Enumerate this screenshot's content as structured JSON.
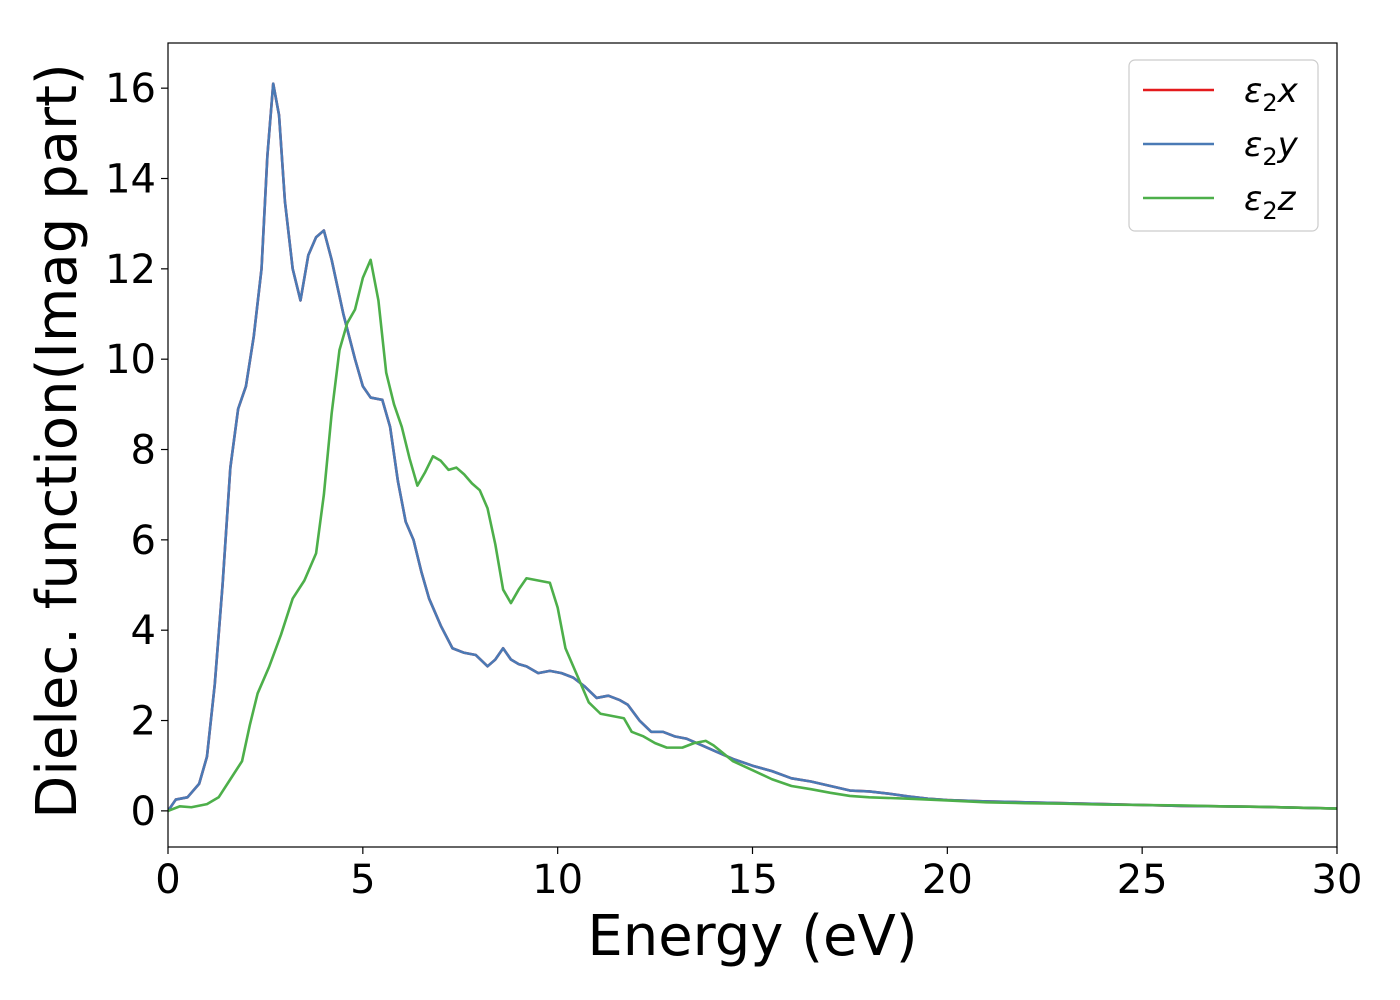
{
  "chart_data": {
    "type": "line",
    "title": "",
    "xlabel": "Energy (eV)",
    "ylabel": "Dielec. function(Imag part)",
    "xlim": [
      0,
      30
    ],
    "ylim": [
      -0.8,
      17
    ],
    "xticks": [
      0,
      5,
      10,
      15,
      20,
      25,
      30
    ],
    "yticks": [
      0,
      2,
      4,
      6,
      8,
      10,
      12,
      14,
      16
    ],
    "grid": false,
    "legend_position": "top-right",
    "series": [
      {
        "name": "ε2x",
        "legend_base": "ε",
        "legend_sub": "2",
        "legend_suffix": "x",
        "color": "#e41a1c",
        "points": [
          [
            0,
            0
          ],
          [
            0.2,
            0.25
          ],
          [
            0.5,
            0.3
          ],
          [
            0.8,
            0.6
          ],
          [
            1.0,
            1.2
          ],
          [
            1.2,
            2.8
          ],
          [
            1.4,
            5.0
          ],
          [
            1.6,
            7.6
          ],
          [
            1.8,
            8.9
          ],
          [
            2.0,
            9.4
          ],
          [
            2.2,
            10.5
          ],
          [
            2.4,
            12.0
          ],
          [
            2.55,
            14.5
          ],
          [
            2.7,
            16.1
          ],
          [
            2.85,
            15.4
          ],
          [
            3.0,
            13.5
          ],
          [
            3.2,
            12.0
          ],
          [
            3.4,
            11.3
          ],
          [
            3.6,
            12.3
          ],
          [
            3.8,
            12.7
          ],
          [
            4.0,
            12.85
          ],
          [
            4.2,
            12.2
          ],
          [
            4.5,
            11.0
          ],
          [
            4.8,
            10.0
          ],
          [
            5.0,
            9.4
          ],
          [
            5.2,
            9.15
          ],
          [
            5.5,
            9.1
          ],
          [
            5.7,
            8.5
          ],
          [
            5.9,
            7.3
          ],
          [
            6.1,
            6.4
          ],
          [
            6.3,
            6.0
          ],
          [
            6.5,
            5.3
          ],
          [
            6.7,
            4.7
          ],
          [
            7.0,
            4.1
          ],
          [
            7.3,
            3.6
          ],
          [
            7.6,
            3.5
          ],
          [
            7.9,
            3.45
          ],
          [
            8.2,
            3.2
          ],
          [
            8.4,
            3.35
          ],
          [
            8.6,
            3.6
          ],
          [
            8.8,
            3.35
          ],
          [
            9.0,
            3.25
          ],
          [
            9.2,
            3.2
          ],
          [
            9.5,
            3.05
          ],
          [
            9.8,
            3.1
          ],
          [
            10.1,
            3.05
          ],
          [
            10.4,
            2.95
          ],
          [
            10.7,
            2.75
          ],
          [
            11.0,
            2.5
          ],
          [
            11.3,
            2.55
          ],
          [
            11.6,
            2.45
          ],
          [
            11.8,
            2.35
          ],
          [
            12.1,
            2.0
          ],
          [
            12.4,
            1.75
          ],
          [
            12.7,
            1.75
          ],
          [
            13.0,
            1.65
          ],
          [
            13.3,
            1.6
          ],
          [
            13.7,
            1.45
          ],
          [
            14.1,
            1.3
          ],
          [
            14.5,
            1.15
          ],
          [
            15.0,
            1.0
          ],
          [
            15.5,
            0.88
          ],
          [
            16.0,
            0.72
          ],
          [
            16.5,
            0.65
          ],
          [
            17.0,
            0.55
          ],
          [
            17.5,
            0.45
          ],
          [
            18.0,
            0.43
          ],
          [
            18.5,
            0.38
          ],
          [
            19.0,
            0.32
          ],
          [
            19.5,
            0.27
          ],
          [
            20.0,
            0.24
          ],
          [
            21.0,
            0.21
          ],
          [
            22.0,
            0.19
          ],
          [
            23.0,
            0.17
          ],
          [
            24.0,
            0.15
          ],
          [
            25.0,
            0.13
          ],
          [
            26.0,
            0.11
          ],
          [
            27.0,
            0.1
          ],
          [
            28.0,
            0.09
          ],
          [
            29.0,
            0.07
          ],
          [
            30.0,
            0.05
          ]
        ]
      },
      {
        "name": "ε2y",
        "legend_base": "ε",
        "legend_sub": "2",
        "legend_suffix": "y",
        "color": "#4a7ab5",
        "points": [
          [
            0,
            0
          ],
          [
            0.2,
            0.25
          ],
          [
            0.5,
            0.3
          ],
          [
            0.8,
            0.6
          ],
          [
            1.0,
            1.2
          ],
          [
            1.2,
            2.8
          ],
          [
            1.4,
            5.0
          ],
          [
            1.6,
            7.6
          ],
          [
            1.8,
            8.9
          ],
          [
            2.0,
            9.4
          ],
          [
            2.2,
            10.5
          ],
          [
            2.4,
            12.0
          ],
          [
            2.55,
            14.5
          ],
          [
            2.7,
            16.1
          ],
          [
            2.85,
            15.4
          ],
          [
            3.0,
            13.5
          ],
          [
            3.2,
            12.0
          ],
          [
            3.4,
            11.3
          ],
          [
            3.6,
            12.3
          ],
          [
            3.8,
            12.7
          ],
          [
            4.0,
            12.85
          ],
          [
            4.2,
            12.2
          ],
          [
            4.5,
            11.0
          ],
          [
            4.8,
            10.0
          ],
          [
            5.0,
            9.4
          ],
          [
            5.2,
            9.15
          ],
          [
            5.5,
            9.1
          ],
          [
            5.7,
            8.5
          ],
          [
            5.9,
            7.3
          ],
          [
            6.1,
            6.4
          ],
          [
            6.3,
            6.0
          ],
          [
            6.5,
            5.3
          ],
          [
            6.7,
            4.7
          ],
          [
            7.0,
            4.1
          ],
          [
            7.3,
            3.6
          ],
          [
            7.6,
            3.5
          ],
          [
            7.9,
            3.45
          ],
          [
            8.2,
            3.2
          ],
          [
            8.4,
            3.35
          ],
          [
            8.6,
            3.6
          ],
          [
            8.8,
            3.35
          ],
          [
            9.0,
            3.25
          ],
          [
            9.2,
            3.2
          ],
          [
            9.5,
            3.05
          ],
          [
            9.8,
            3.1
          ],
          [
            10.1,
            3.05
          ],
          [
            10.4,
            2.95
          ],
          [
            10.7,
            2.75
          ],
          [
            11.0,
            2.5
          ],
          [
            11.3,
            2.55
          ],
          [
            11.6,
            2.45
          ],
          [
            11.8,
            2.35
          ],
          [
            12.1,
            2.0
          ],
          [
            12.4,
            1.75
          ],
          [
            12.7,
            1.75
          ],
          [
            13.0,
            1.65
          ],
          [
            13.3,
            1.6
          ],
          [
            13.7,
            1.45
          ],
          [
            14.1,
            1.3
          ],
          [
            14.5,
            1.15
          ],
          [
            15.0,
            1.0
          ],
          [
            15.5,
            0.88
          ],
          [
            16.0,
            0.72
          ],
          [
            16.5,
            0.65
          ],
          [
            17.0,
            0.55
          ],
          [
            17.5,
            0.45
          ],
          [
            18.0,
            0.43
          ],
          [
            18.5,
            0.38
          ],
          [
            19.0,
            0.32
          ],
          [
            19.5,
            0.27
          ],
          [
            20.0,
            0.24
          ],
          [
            21.0,
            0.21
          ],
          [
            22.0,
            0.19
          ],
          [
            23.0,
            0.17
          ],
          [
            24.0,
            0.15
          ],
          [
            25.0,
            0.13
          ],
          [
            26.0,
            0.11
          ],
          [
            27.0,
            0.1
          ],
          [
            28.0,
            0.09
          ],
          [
            29.0,
            0.07
          ],
          [
            30.0,
            0.05
          ]
        ]
      },
      {
        "name": "ε2z",
        "legend_base": "ε",
        "legend_sub": "2",
        "legend_suffix": "z",
        "color": "#4daf4a",
        "points": [
          [
            0,
            0
          ],
          [
            0.3,
            0.1
          ],
          [
            0.6,
            0.08
          ],
          [
            1.0,
            0.15
          ],
          [
            1.3,
            0.3
          ],
          [
            1.6,
            0.7
          ],
          [
            1.9,
            1.1
          ],
          [
            2.1,
            1.9
          ],
          [
            2.3,
            2.6
          ],
          [
            2.6,
            3.2
          ],
          [
            2.9,
            3.9
          ],
          [
            3.2,
            4.7
          ],
          [
            3.5,
            5.1
          ],
          [
            3.8,
            5.7
          ],
          [
            4.0,
            7.0
          ],
          [
            4.2,
            8.8
          ],
          [
            4.4,
            10.2
          ],
          [
            4.6,
            10.8
          ],
          [
            4.8,
            11.1
          ],
          [
            5.0,
            11.8
          ],
          [
            5.2,
            12.2
          ],
          [
            5.4,
            11.3
          ],
          [
            5.6,
            9.7
          ],
          [
            5.8,
            9.0
          ],
          [
            6.0,
            8.5
          ],
          [
            6.2,
            7.8
          ],
          [
            6.4,
            7.2
          ],
          [
            6.6,
            7.5
          ],
          [
            6.8,
            7.85
          ],
          [
            7.0,
            7.75
          ],
          [
            7.2,
            7.55
          ],
          [
            7.4,
            7.6
          ],
          [
            7.6,
            7.45
          ],
          [
            7.8,
            7.25
          ],
          [
            8.0,
            7.1
          ],
          [
            8.2,
            6.7
          ],
          [
            8.4,
            5.9
          ],
          [
            8.6,
            4.9
          ],
          [
            8.8,
            4.6
          ],
          [
            9.0,
            4.9
          ],
          [
            9.2,
            5.15
          ],
          [
            9.5,
            5.1
          ],
          [
            9.8,
            5.05
          ],
          [
            10.0,
            4.5
          ],
          [
            10.2,
            3.6
          ],
          [
            10.5,
            3.0
          ],
          [
            10.8,
            2.4
          ],
          [
            11.1,
            2.15
          ],
          [
            11.4,
            2.1
          ],
          [
            11.7,
            2.05
          ],
          [
            11.9,
            1.75
          ],
          [
            12.2,
            1.65
          ],
          [
            12.5,
            1.5
          ],
          [
            12.8,
            1.4
          ],
          [
            13.2,
            1.4
          ],
          [
            13.5,
            1.5
          ],
          [
            13.8,
            1.55
          ],
          [
            14.0,
            1.45
          ],
          [
            14.5,
            1.1
          ],
          [
            15.0,
            0.9
          ],
          [
            15.5,
            0.7
          ],
          [
            16.0,
            0.55
          ],
          [
            16.5,
            0.48
          ],
          [
            17.0,
            0.4
          ],
          [
            17.5,
            0.33
          ],
          [
            18.0,
            0.3
          ],
          [
            19.0,
            0.27
          ],
          [
            20.0,
            0.23
          ],
          [
            21.0,
            0.19
          ],
          [
            22.0,
            0.17
          ],
          [
            23.0,
            0.16
          ],
          [
            24.0,
            0.14
          ],
          [
            25.0,
            0.13
          ],
          [
            26.0,
            0.12
          ],
          [
            27.0,
            0.1
          ],
          [
            28.0,
            0.09
          ],
          [
            29.0,
            0.07
          ],
          [
            30.0,
            0.05
          ]
        ]
      }
    ]
  }
}
